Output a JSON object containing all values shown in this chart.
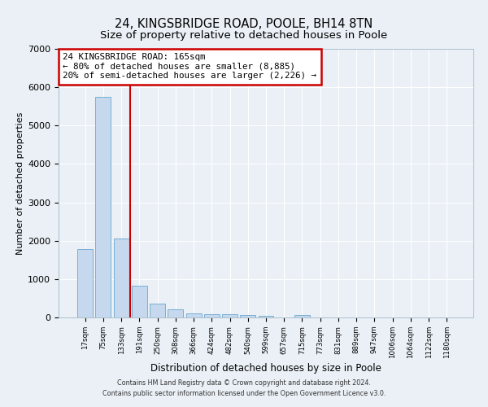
{
  "title": "24, KINGSBRIDGE ROAD, POOLE, BH14 8TN",
  "subtitle": "Size of property relative to detached houses in Poole",
  "xlabel": "Distribution of detached houses by size in Poole",
  "ylabel": "Number of detached properties",
  "bar_labels": [
    "17sqm",
    "75sqm",
    "133sqm",
    "191sqm",
    "250sqm",
    "308sqm",
    "366sqm",
    "424sqm",
    "482sqm",
    "540sqm",
    "599sqm",
    "657sqm",
    "715sqm",
    "773sqm",
    "831sqm",
    "889sqm",
    "947sqm",
    "1006sqm",
    "1064sqm",
    "1122sqm",
    "1180sqm"
  ],
  "bar_values": [
    1780,
    5750,
    2060,
    830,
    370,
    215,
    115,
    90,
    85,
    55,
    40,
    0,
    55,
    0,
    0,
    0,
    0,
    0,
    0,
    0,
    0
  ],
  "bar_color": "#c5d8ed",
  "bar_edge_color": "#7aafd4",
  "vline_color": "#cc0000",
  "ylim": [
    0,
    7000
  ],
  "yticks": [
    0,
    1000,
    2000,
    3000,
    4000,
    5000,
    6000,
    7000
  ],
  "annotation_line1": "24 KINGSBRIDGE ROAD: 165sqm",
  "annotation_line2": "← 80% of detached houses are smaller (8,885)",
  "annotation_line3": "20% of semi-detached houses are larger (2,226) →",
  "annotation_box_color": "#ffffff",
  "annotation_box_edge": "#cc0000",
  "footer_line1": "Contains HM Land Registry data © Crown copyright and database right 2024.",
  "footer_line2": "Contains public sector information licensed under the Open Government Licence v3.0.",
  "bg_color": "#eaf0f6",
  "grid_color": "#ffffff",
  "title_fontsize": 10.5,
  "subtitle_fontsize": 9.5,
  "vline_bar_index": 2
}
